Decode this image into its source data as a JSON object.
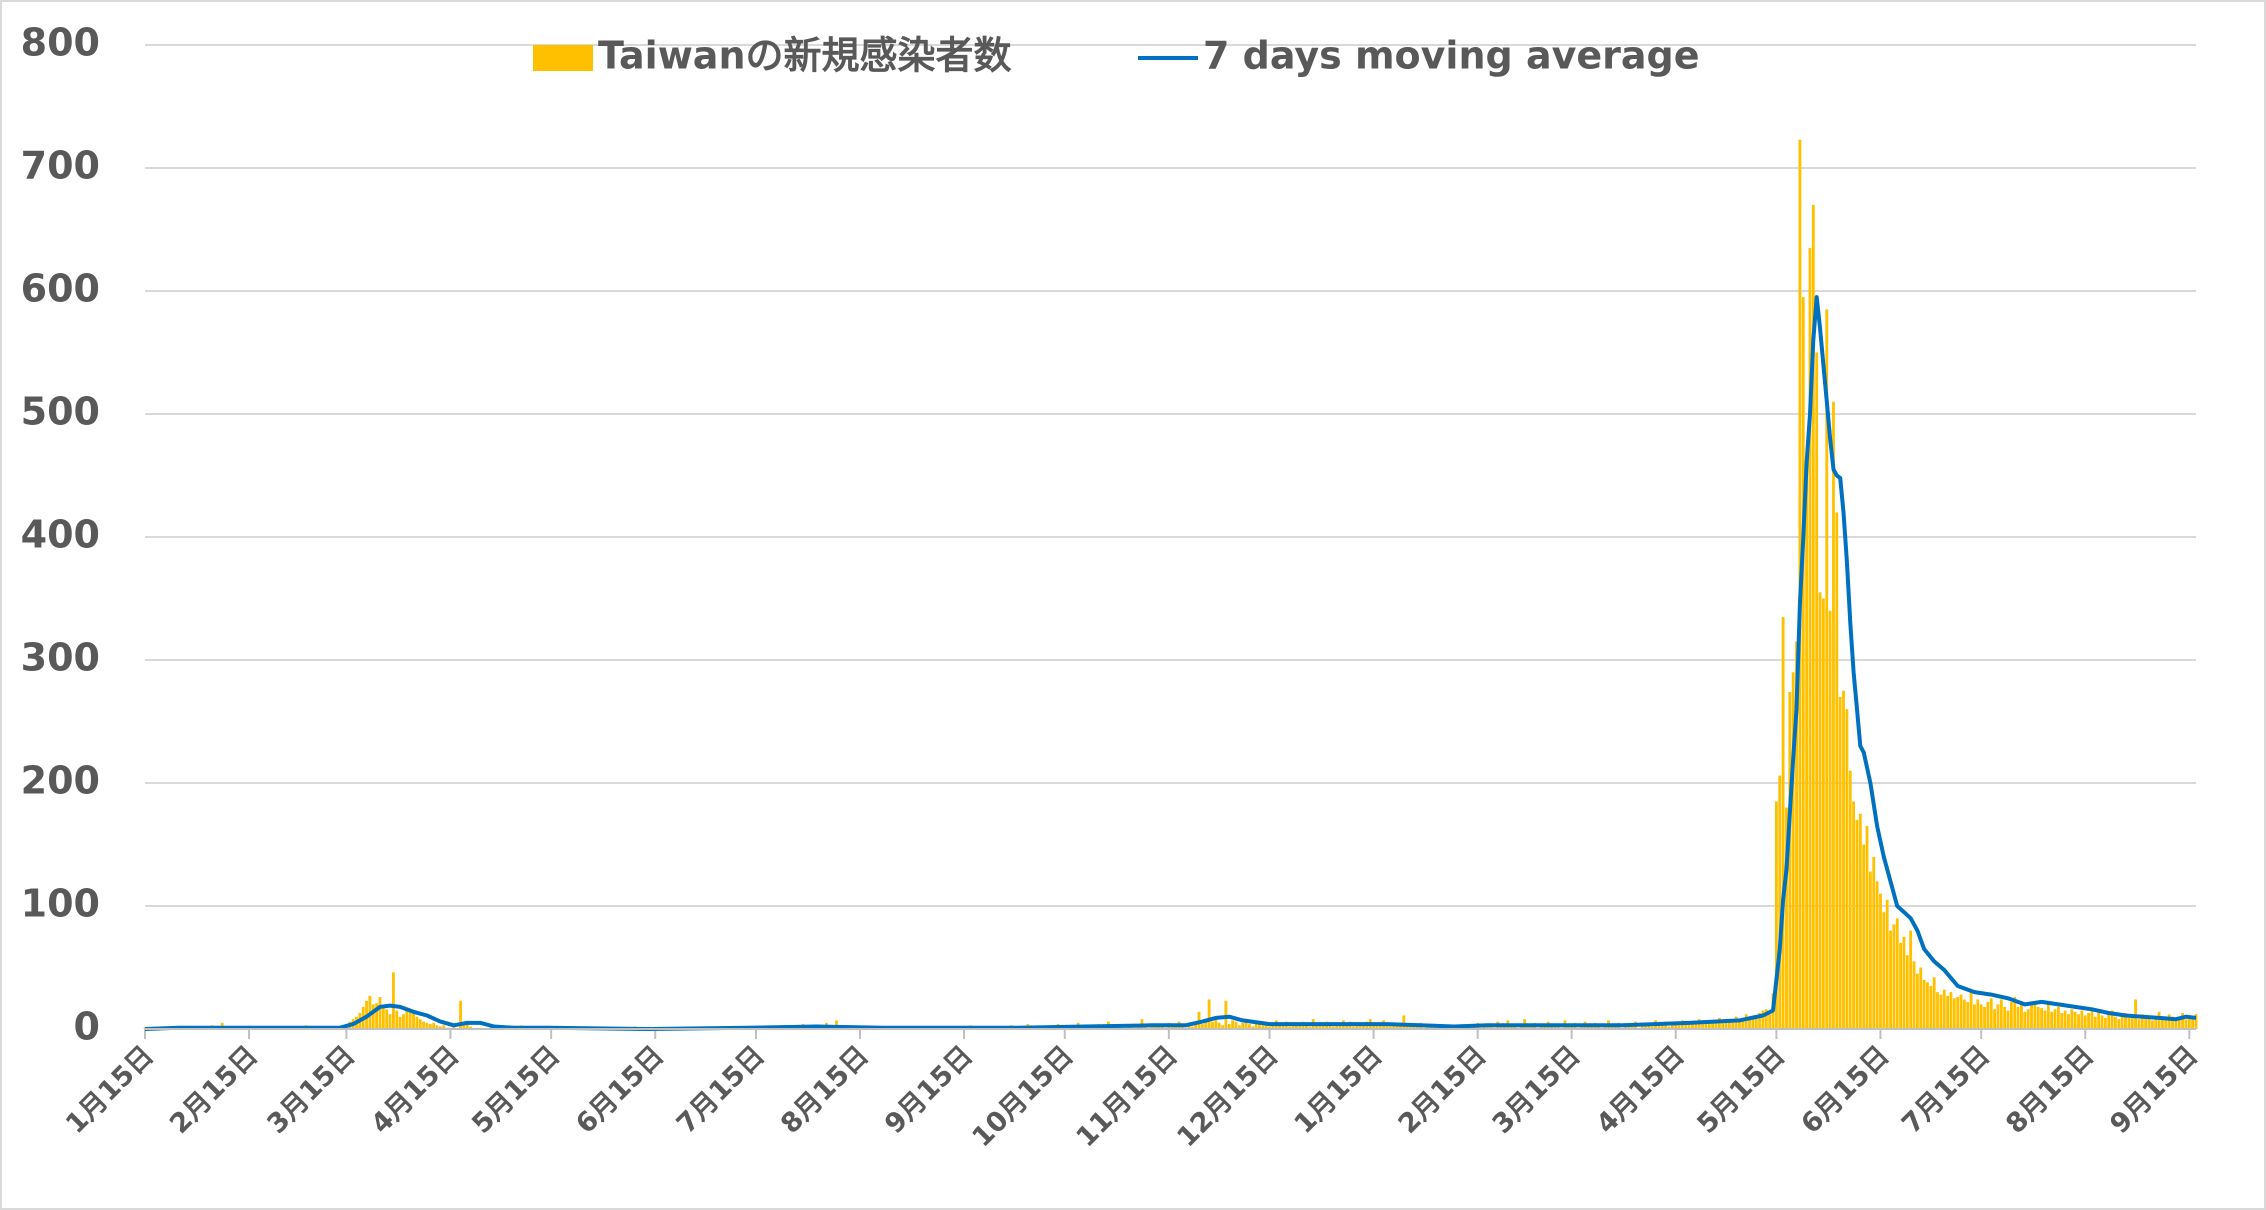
{
  "chart_data": {
    "type": "bar",
    "xlim": [
      0,
      611
    ],
    "ylim": [
      0,
      800
    ],
    "yticks": [
      0,
      100,
      200,
      300,
      400,
      500,
      600,
      700,
      800
    ],
    "grid": true,
    "xticks": [
      {
        "value": 0,
        "label": "1月15日"
      },
      {
        "value": 31,
        "label": "2月15日"
      },
      {
        "value": 60,
        "label": "3月15日"
      },
      {
        "value": 91,
        "label": "4月15日"
      },
      {
        "value": 121,
        "label": "5月15日"
      },
      {
        "value": 152,
        "label": "6月15日"
      },
      {
        "value": 182,
        "label": "7月15日"
      },
      {
        "value": 213,
        "label": "8月15日"
      },
      {
        "value": 244,
        "label": "9月15日"
      },
      {
        "value": 274,
        "label": "10月15日"
      },
      {
        "value": 305,
        "label": "11月15日"
      },
      {
        "value": 335,
        "label": "12月15日"
      },
      {
        "value": 366,
        "label": "1月15日"
      },
      {
        "value": 397,
        "label": "2月15日"
      },
      {
        "value": 425,
        "label": "3月15日"
      },
      {
        "value": 456,
        "label": "4月15日"
      },
      {
        "value": 486,
        "label": "5月15日"
      },
      {
        "value": 517,
        "label": "6月15日"
      },
      {
        "value": 547,
        "label": "7月15日"
      },
      {
        "value": 578,
        "label": "8月15日"
      },
      {
        "value": 609,
        "label": "9月15日"
      }
    ],
    "legend": "top",
    "series": [
      {
        "name": "Taiwanの新規感染者数",
        "type": "bar",
        "color": "#FFC000",
        "values": [
          1,
          0,
          0,
          1,
          0,
          0,
          2,
          1,
          0,
          1,
          1,
          0,
          0,
          2,
          1,
          0,
          0,
          1,
          0,
          0,
          3,
          0,
          1,
          5,
          1,
          0,
          0,
          1,
          0,
          1,
          0,
          1,
          0,
          0,
          1,
          2,
          1,
          0,
          0,
          1,
          0,
          2,
          0,
          1,
          0,
          0,
          1,
          0,
          3,
          1,
          0,
          2,
          1,
          2,
          0,
          1,
          0,
          1,
          2,
          1,
          3,
          6,
          8,
          10,
          13,
          18,
          23,
          27,
          20,
          21,
          26,
          17,
          16,
          12,
          46,
          15,
          10,
          12,
          16,
          14,
          15,
          10,
          8,
          6,
          5,
          4,
          5,
          3,
          2,
          3,
          1,
          1,
          2,
          0,
          23,
          3,
          4,
          2,
          0,
          1,
          1,
          0,
          0,
          2,
          1,
          0,
          0,
          1,
          0,
          2,
          1,
          0,
          3,
          1,
          0,
          1,
          0,
          0,
          1,
          0,
          1,
          0,
          0,
          1,
          0,
          0,
          0,
          0,
          1,
          0,
          0,
          0,
          2,
          0,
          0,
          1,
          0,
          0,
          0,
          0,
          0,
          1,
          0,
          0,
          0,
          0,
          2,
          0,
          0,
          0,
          0,
          1,
          0,
          0,
          0,
          0,
          0,
          0,
          0,
          1,
          0,
          0,
          0,
          0,
          0,
          0,
          1,
          0,
          0,
          0,
          0,
          0,
          0,
          0,
          1,
          0,
          0,
          0,
          0,
          2,
          0,
          0,
          0,
          1,
          0,
          0,
          0,
          2,
          0,
          1,
          0,
          0,
          0,
          3,
          1,
          0,
          4,
          2,
          1,
          3,
          0,
          1,
          2,
          5,
          1,
          0,
          7,
          1,
          2,
          0,
          1,
          2,
          1,
          0,
          1,
          0,
          0,
          1,
          0,
          0,
          1,
          2,
          0,
          0,
          0,
          1,
          0,
          1,
          0,
          0,
          2,
          0,
          1,
          0,
          0,
          1,
          0,
          0,
          2,
          0,
          1,
          0,
          1,
          2,
          0,
          1,
          3,
          0,
          1,
          0,
          2,
          1,
          0,
          1,
          0,
          2,
          0,
          1,
          3,
          0,
          1,
          2,
          0,
          4,
          1,
          0,
          2,
          1,
          0,
          3,
          2,
          1,
          4,
          2,
          0,
          3,
          1,
          2,
          5,
          1,
          0,
          2,
          3,
          1,
          4,
          0,
          2,
          6,
          1,
          2,
          3,
          1,
          0,
          2,
          4,
          1,
          3,
          8,
          2,
          1,
          2,
          4,
          3,
          2,
          1,
          5,
          3,
          2,
          6,
          4,
          1,
          3,
          2,
          5,
          14,
          4,
          8,
          24,
          6,
          10,
          5,
          3,
          23,
          4,
          7,
          6,
          3,
          5,
          8,
          4,
          2,
          5,
          6,
          3,
          4,
          2,
          5,
          7,
          3,
          4,
          6,
          2,
          3,
          5,
          4,
          6,
          3,
          2,
          8,
          4,
          5,
          3,
          6,
          4,
          2,
          5,
          3,
          7,
          4,
          6,
          2,
          4,
          5,
          3,
          6,
          8,
          4,
          5,
          3,
          7,
          4,
          2,
          5,
          3,
          4,
          11,
          2,
          3,
          4,
          2,
          5,
          1,
          3,
          2,
          4,
          1,
          3,
          2,
          1,
          2,
          3,
          1,
          2,
          3,
          1,
          4,
          2,
          5,
          1,
          3,
          2,
          4,
          1,
          6,
          2,
          3,
          7,
          2,
          4,
          1,
          3,
          8,
          2,
          3,
          5,
          1,
          4,
          2,
          6,
          3,
          2,
          4,
          1,
          7,
          3,
          2,
          5,
          1,
          4,
          6,
          2,
          3,
          5,
          2,
          1,
          4,
          7,
          3,
          2,
          5,
          1,
          4,
          3,
          2,
          6,
          1,
          3,
          5,
          4,
          2,
          7,
          3,
          4,
          6,
          2,
          5,
          4,
          3,
          7,
          5,
          4,
          6,
          5,
          8,
          4,
          6,
          5,
          7,
          6,
          9,
          5,
          7,
          8,
          6,
          10,
          7,
          9,
          12,
          8,
          11,
          10,
          13,
          15,
          16,
          12,
          29,
          185,
          206,
          335,
          180,
          274,
          290,
          315,
          723,
          595,
          460,
          635,
          670,
          550,
          355,
          350,
          585,
          340,
          510,
          420,
          270,
          275,
          260,
          210,
          185,
          170,
          175,
          150,
          165,
          128,
          140,
          120,
          110,
          95,
          105,
          80,
          85,
          90,
          70,
          75,
          60,
          80,
          55,
          45,
          50,
          40,
          38,
          35,
          42,
          30,
          28,
          32,
          27,
          30,
          25,
          26,
          28,
          24,
          22,
          30,
          20,
          24,
          20,
          18,
          22,
          25,
          16,
          20,
          24,
          18,
          15,
          22,
          26,
          18,
          20,
          14,
          16,
          20,
          22,
          18,
          17,
          15,
          20,
          14,
          16,
          18,
          13,
          15,
          12,
          16,
          14,
          12,
          15,
          11,
          13,
          16,
          10,
          14,
          11,
          9,
          12,
          15,
          10,
          8,
          11,
          13,
          9,
          10,
          24,
          8,
          12,
          9,
          11,
          7,
          10,
          14,
          9,
          8,
          12,
          10,
          7,
          9,
          13,
          8,
          10,
          9,
          12
        ]
      },
      {
        "name": "7 days moving average",
        "type": "line",
        "color": "#0070C0",
        "x": [
          0,
          10,
          20,
          30,
          40,
          50,
          58,
          62,
          66,
          70,
          73,
          76,
          80,
          84,
          88,
          92,
          96,
          100,
          104,
          110,
          120,
          150,
          180,
          200,
          220,
          240,
          260,
          280,
          300,
          310,
          315,
          319,
          323,
          327,
          335,
          350,
          360,
          370,
          380,
          390,
          400,
          410,
          420,
          440,
          460,
          475,
          482,
          485,
          486,
          487,
          488,
          489,
          490,
          491,
          492,
          493,
          494,
          495,
          496,
          497,
          498,
          499,
          500,
          501,
          502,
          503,
          504,
          505,
          506,
          507,
          508,
          509,
          510,
          511,
          512,
          514,
          516,
          518,
          520,
          522,
          524,
          526,
          528,
          530,
          533,
          536,
          540,
          545,
          550,
          555,
          560,
          565,
          570,
          575,
          580,
          585,
          590,
          595,
          600,
          605,
          608,
          611
        ],
        "values": [
          0,
          1,
          1,
          1,
          1,
          1,
          1,
          4,
          10,
          18,
          19,
          18,
          14,
          11,
          6,
          3,
          5,
          5,
          2,
          1,
          1,
          0,
          1,
          2,
          1,
          1,
          1,
          2,
          3,
          3,
          6,
          9,
          10,
          7,
          4,
          4,
          4,
          4,
          3,
          2,
          3,
          3,
          3,
          3,
          5,
          7,
          11,
          15,
          40,
          65,
          105,
          130,
          175,
          220,
          260,
          345,
          400,
          460,
          500,
          560,
          595,
          570,
          540,
          510,
          480,
          455,
          450,
          448,
          420,
          380,
          330,
          290,
          260,
          230,
          225,
          200,
          165,
          140,
          120,
          100,
          95,
          90,
          80,
          65,
          55,
          48,
          35,
          30,
          28,
          25,
          20,
          22,
          20,
          18,
          16,
          13,
          11,
          10,
          9,
          8,
          10,
          9
        ]
      }
    ]
  }
}
